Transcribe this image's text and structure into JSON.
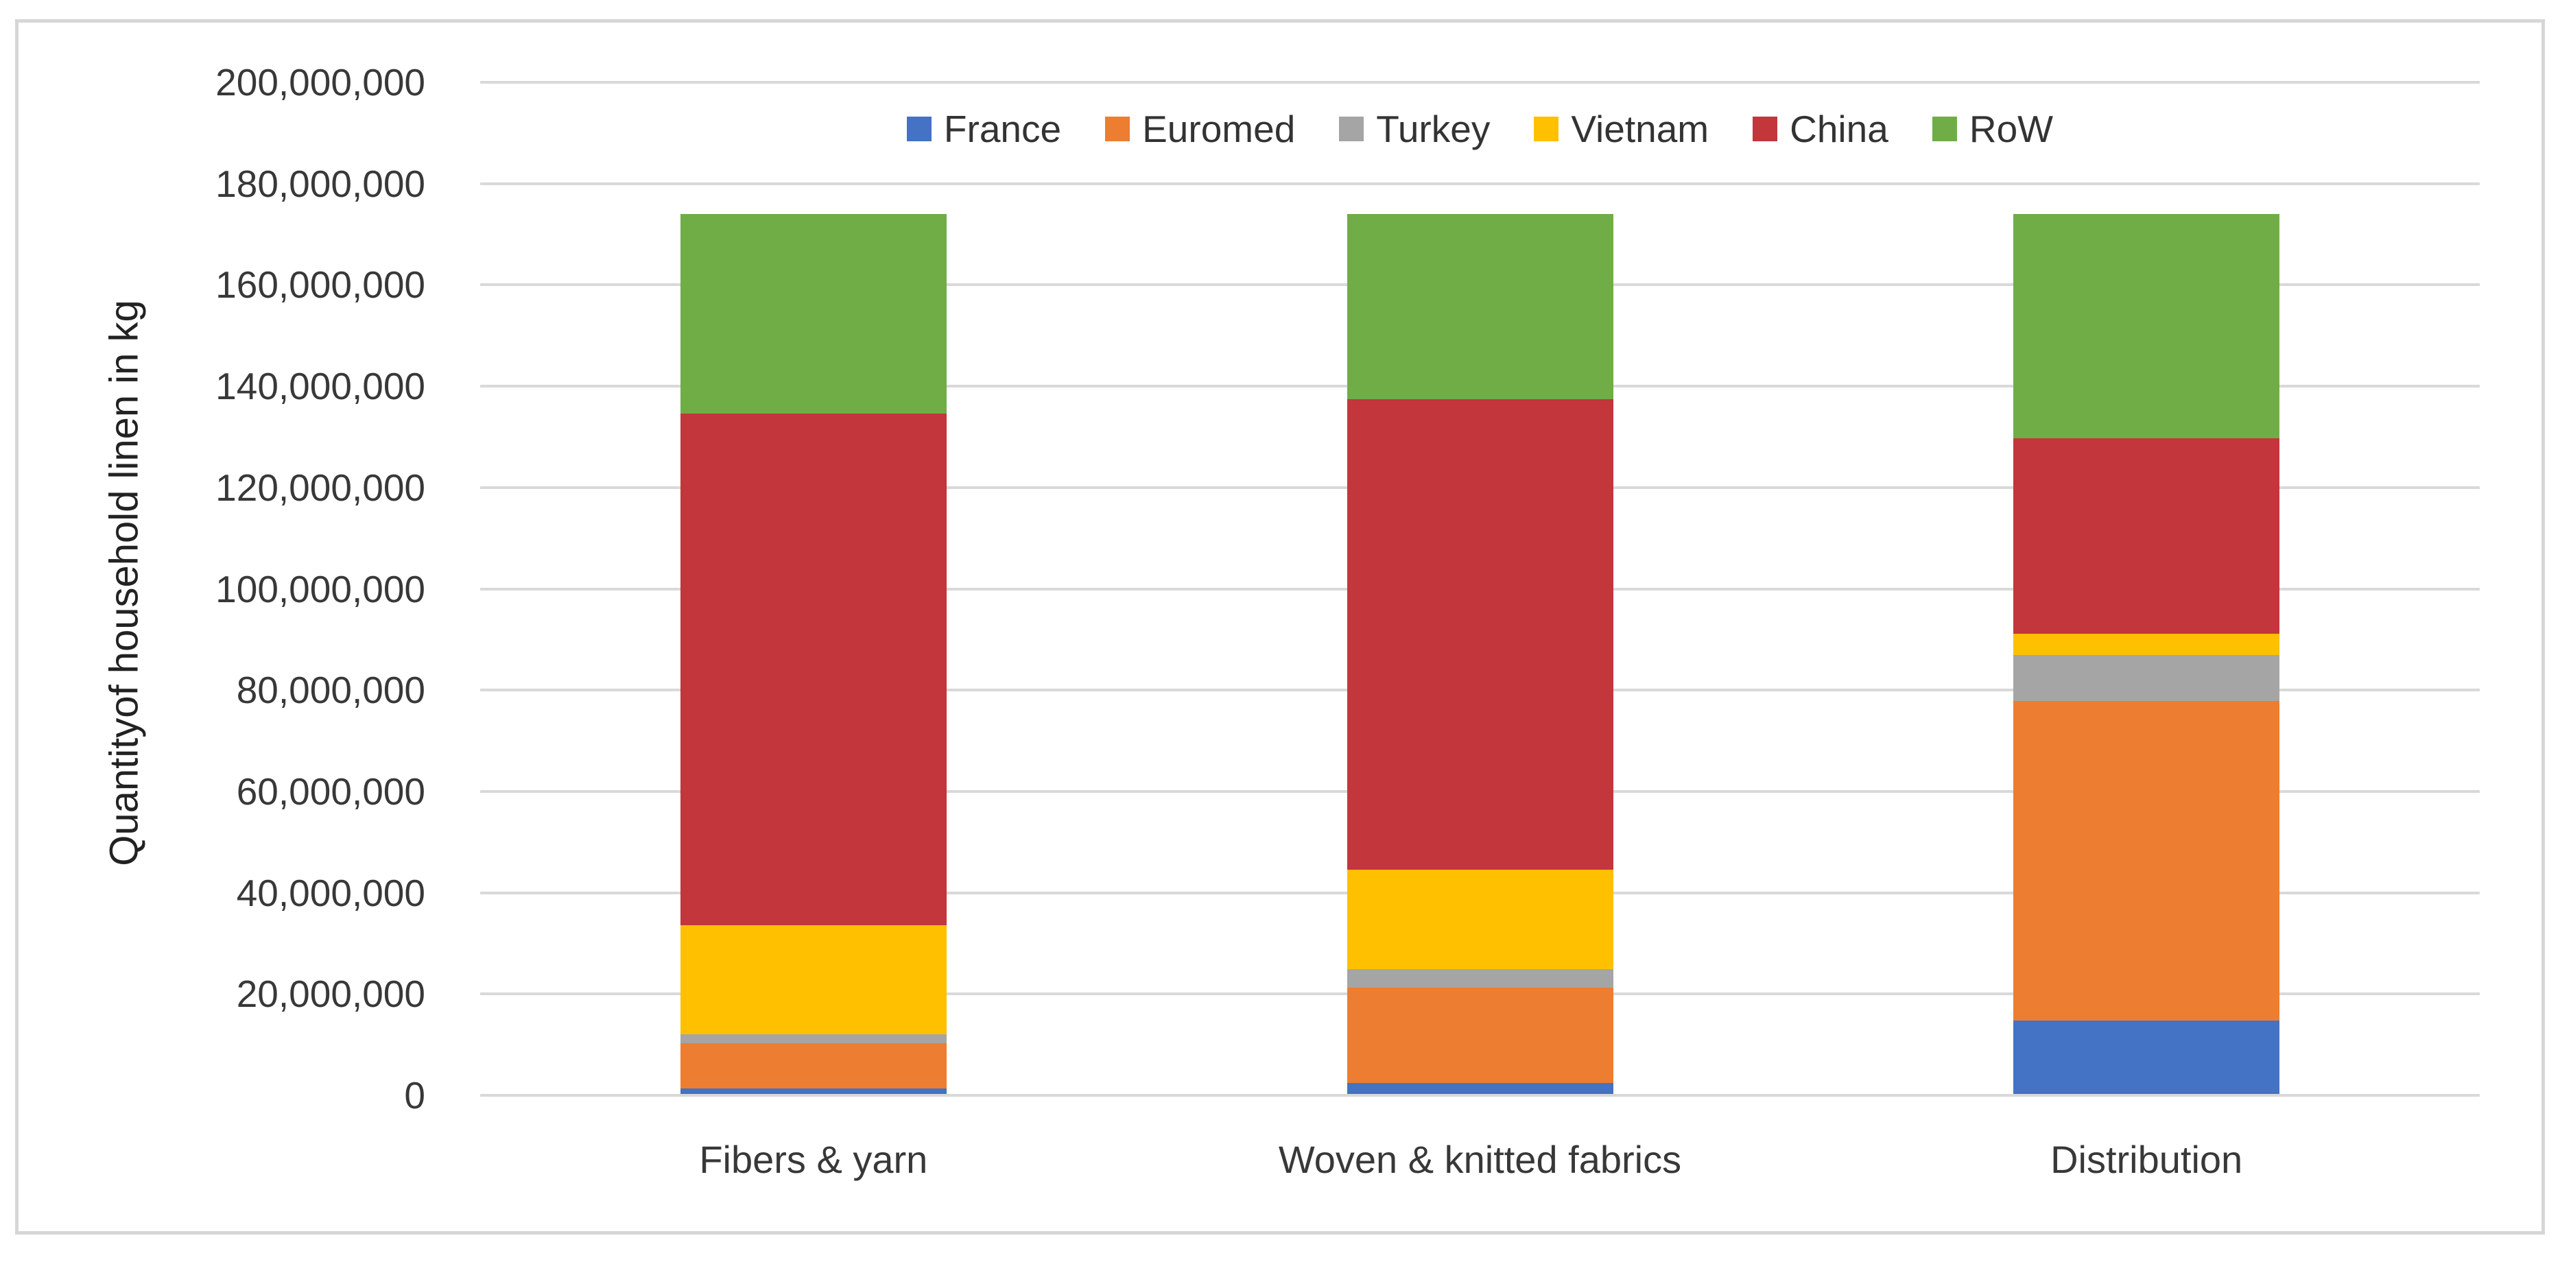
{
  "chart_data": {
    "type": "bar",
    "stacked": true,
    "title": "",
    "xlabel": "",
    "ylabel": "Quantityof household linen in kg",
    "categories": [
      "Fibers & yarn",
      "Woven & knitted fabrics",
      "Distribution"
    ],
    "series": [
      {
        "name": "France",
        "color": "#4472C4",
        "values": [
          1300000,
          2500000,
          14800000
        ]
      },
      {
        "name": "Euromed",
        "color": "#ED7D31",
        "values": [
          9000000,
          18700000,
          63100000
        ]
      },
      {
        "name": "Turkey",
        "color": "#A5A5A5",
        "values": [
          1800000,
          3700000,
          9000000
        ]
      },
      {
        "name": "Vietnam",
        "color": "#FFC000",
        "values": [
          21500000,
          19700000,
          4200000
        ]
      },
      {
        "name": "China",
        "color": "#C2363C",
        "values": [
          101000000,
          92900000,
          38600000
        ]
      },
      {
        "name": "RoW",
        "color": "#70AD47",
        "values": [
          39400000,
          36500000,
          44300000
        ]
      }
    ],
    "ylim": [
      0,
      200000000
    ],
    "y_tick_step": 20000000,
    "y_tick_labels": [
      "0",
      "20,000,000",
      "40,000,000",
      "60,000,000",
      "80,000,000",
      "100,000,000",
      "120,000,000",
      "140,000,000",
      "160,000,000",
      "180,000,000",
      "200,000,000"
    ],
    "grid": true,
    "legend_position": "top",
    "gridline_color": "#D9D9D9",
    "frame_color": "#D6D6D6",
    "background_color": "#FFFFFF",
    "text_color": "#383838"
  }
}
